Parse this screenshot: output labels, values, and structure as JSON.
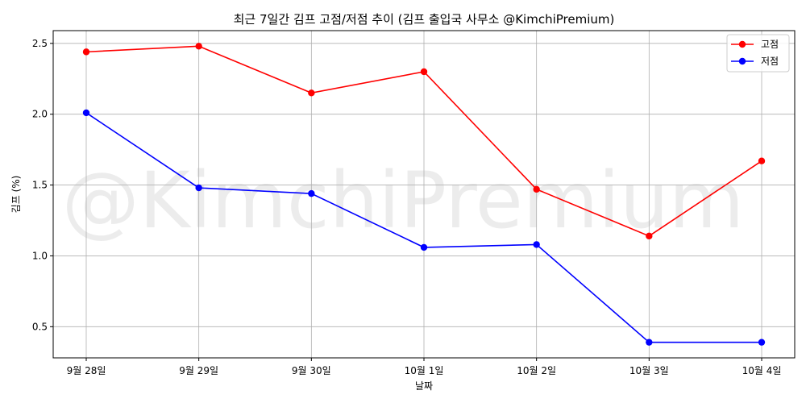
{
  "chart_data": {
    "type": "line",
    "title": "최근 7일간 김프 고점/저점 추이 (김프 출입국 사무소 @KimchiPremium)",
    "xlabel": "날짜",
    "ylabel": "김프 (%)",
    "categories": [
      "9월 28일",
      "9월 29일",
      "9월 30일",
      "10월 1일",
      "10월 2일",
      "10월 3일",
      "10월 4일"
    ],
    "series": [
      {
        "name": "고점",
        "color": "#ff0000",
        "marker": "circle",
        "values": [
          2.44,
          2.48,
          2.15,
          2.3,
          1.47,
          1.14,
          1.67
        ]
      },
      {
        "name": "저점",
        "color": "#0000ff",
        "marker": "circle",
        "values": [
          2.01,
          1.48,
          1.44,
          1.06,
          1.08,
          0.39,
          0.39
        ]
      }
    ],
    "ylim": [
      0.28,
      2.59
    ],
    "yticks": [
      0.5,
      1.0,
      1.5,
      2.0,
      2.5
    ],
    "ytick_labels": [
      "0.5",
      "1.0",
      "1.5",
      "2.0",
      "2.5"
    ],
    "grid": true,
    "legend_position": "upper right",
    "watermark": "@KimchiPremium"
  }
}
